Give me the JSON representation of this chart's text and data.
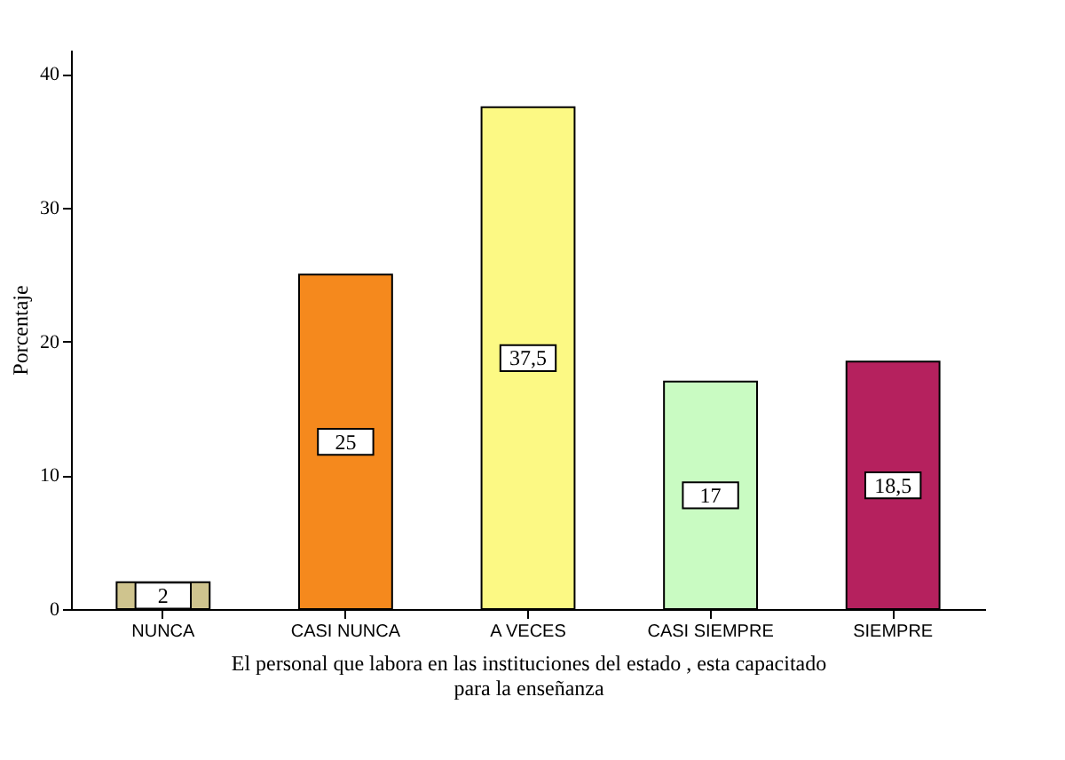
{
  "chart_data": {
    "type": "bar",
    "xlabel": "El personal que labora en las instituciones del estado , esta capacitado\npara la enseñanza",
    "ylabel": "Porcentaje",
    "categories": [
      "NUNCA",
      "CASI NUNCA",
      "A VECES",
      "CASI SIEMPRE",
      "SIEMPRE"
    ],
    "values": [
      2,
      25,
      37.5,
      17,
      18.5
    ],
    "value_labels": [
      "2",
      "25",
      "37,5",
      "17",
      "18,5"
    ],
    "colors": [
      "#cfc48e",
      "#f5891d",
      "#fcf984",
      "#c9fbc2",
      "#b5215e"
    ],
    "ylim": [
      0,
      41.8
    ],
    "yticks": [
      0,
      10,
      20,
      30,
      40
    ],
    "grid": false
  }
}
